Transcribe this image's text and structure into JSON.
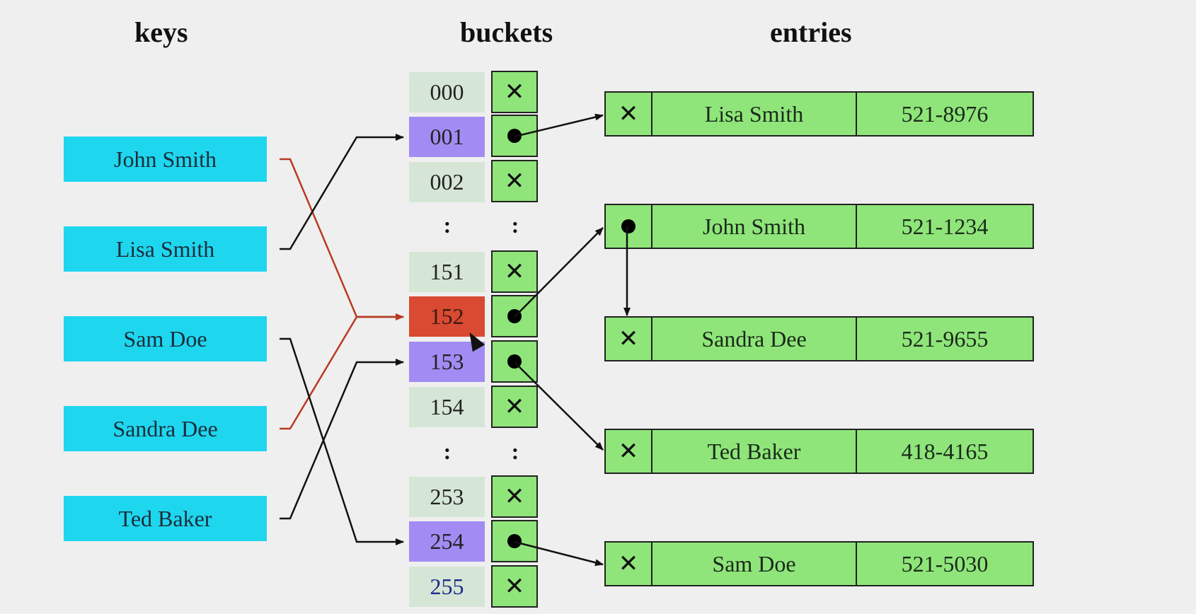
{
  "headers": {
    "keys": "keys",
    "buckets": "buckets",
    "entries": "entries"
  },
  "keys": [
    "John Smith",
    "Lisa Smith",
    "Sam Doe",
    "Sandra Dee",
    "Ted Baker"
  ],
  "buckets": [
    {
      "index": "000",
      "slot": "empty",
      "state": "free"
    },
    {
      "index": "001",
      "slot": "pointer",
      "state": "used"
    },
    {
      "index": "002",
      "slot": "empty",
      "state": "free"
    },
    {
      "index": "151",
      "slot": "empty",
      "state": "free"
    },
    {
      "index": "152",
      "slot": "pointer",
      "state": "collision"
    },
    {
      "index": "153",
      "slot": "pointer",
      "state": "used"
    },
    {
      "index": "154",
      "slot": "empty",
      "state": "free"
    },
    {
      "index": "253",
      "slot": "empty",
      "state": "free"
    },
    {
      "index": "254",
      "slot": "pointer",
      "state": "used"
    },
    {
      "index": "255",
      "slot": "empty",
      "state": "free"
    }
  ],
  "ellipsis": ":",
  "empty_symbol": "✕",
  "entries": [
    {
      "name": "Lisa Smith",
      "phone": "521-8976",
      "next": "empty"
    },
    {
      "name": "John Smith",
      "phone": "521-1234",
      "next": "pointer"
    },
    {
      "name": "Sandra Dee",
      "phone": "521-9655",
      "next": "empty"
    },
    {
      "name": "Ted Baker",
      "phone": "418-4165",
      "next": "empty"
    },
    {
      "name": "Sam Doe",
      "phone": "521-5030",
      "next": "empty"
    }
  ],
  "key_to_bucket": [
    {
      "key": "John Smith",
      "bucket": "152",
      "color": "#b83a22"
    },
    {
      "key": "Lisa Smith",
      "bucket": "001",
      "color": "#111111"
    },
    {
      "key": "Sam Doe",
      "bucket": "254",
      "color": "#111111"
    },
    {
      "key": "Sandra Dee",
      "bucket": "152",
      "color": "#b83a22"
    },
    {
      "key": "Ted Baker",
      "bucket": "153",
      "color": "#111111"
    }
  ],
  "bucket_to_entry": [
    {
      "bucket": "001",
      "entry": "Lisa Smith"
    },
    {
      "bucket": "152",
      "entry": "John Smith"
    },
    {
      "bucket": "153",
      "entry": "Ted Baker"
    },
    {
      "bucket": "254",
      "entry": "Sam Doe"
    }
  ],
  "entry_chain": [
    {
      "from": "John Smith",
      "to": "Sandra Dee"
    }
  ],
  "colors": {
    "key_box": "#1fd6ef",
    "bucket_free": "#d6e6d6",
    "bucket_used": "#a28cf4",
    "bucket_collision": "#d84a32",
    "entry_box": "#8fe57a",
    "collision_arrow": "#b83a22"
  }
}
